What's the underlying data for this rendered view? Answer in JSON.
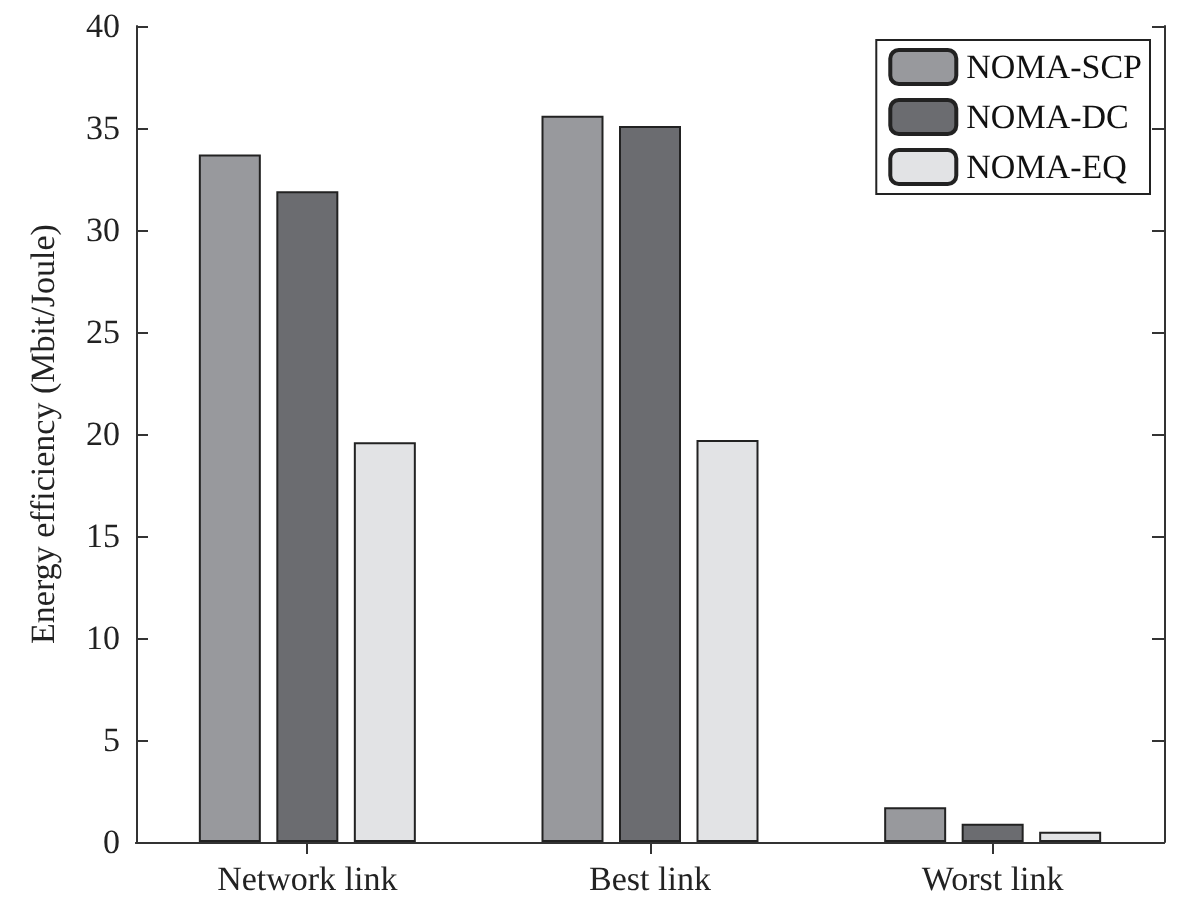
{
  "chart_data": {
    "type": "bar",
    "ylabel": "Energy efficiency (Mbit/Joule)",
    "categories": [
      "Network link",
      "Best link",
      "Worst link"
    ],
    "series": [
      {
        "name": "NOMA-SCP",
        "color": "#98999d",
        "values": [
          33.7,
          35.6,
          1.7
        ]
      },
      {
        "name": "NOMA-DC",
        "color": "#6b6c70",
        "values": [
          31.9,
          35.1,
          0.9
        ]
      },
      {
        "name": "NOMA-EQ",
        "color": "#e2e3e5",
        "values": [
          19.6,
          19.7,
          0.5
        ]
      }
    ],
    "ylim": [
      0,
      40
    ],
    "yticks": [
      0,
      5,
      10,
      15,
      20,
      25,
      30,
      35,
      40
    ],
    "grid": false,
    "legend": "top right"
  }
}
